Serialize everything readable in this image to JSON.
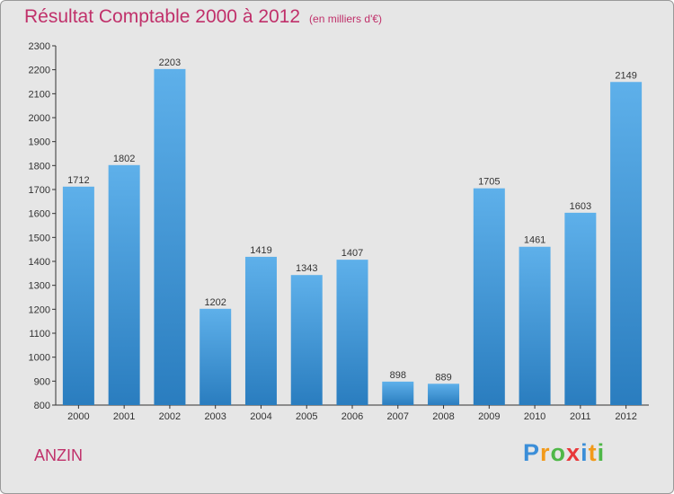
{
  "chart_data": {
    "type": "bar",
    "title": "Résultat Comptable 2000 à 2012",
    "unit": "(en milliers d'€)",
    "categories": [
      "2000",
      "2001",
      "2002",
      "2003",
      "2004",
      "2005",
      "2006",
      "2007",
      "2008",
      "2009",
      "2010",
      "2011",
      "2012"
    ],
    "values": [
      1712,
      1802,
      2203,
      1202,
      1419,
      1343,
      1407,
      898,
      889,
      1705,
      1461,
      1603,
      2149
    ],
    "ylim": [
      800,
      2300
    ],
    "yticks": [
      800,
      900,
      1000,
      1100,
      1200,
      1300,
      1400,
      1500,
      1600,
      1700,
      1800,
      1900,
      2000,
      2100,
      2200,
      2300
    ],
    "xlabel": "",
    "ylabel": "",
    "grid": false
  },
  "commune": "ANZIN",
  "logo": {
    "text": "Proxiti",
    "letters": [
      {
        "char": "P",
        "color": "#3b8ed8"
      },
      {
        "char": "r",
        "color": "#f29a1a"
      },
      {
        "char": "o",
        "color": "#4fb848"
      },
      {
        "char": "x",
        "color": "#e8383a"
      },
      {
        "char": "i",
        "color": "#3b8ed8"
      },
      {
        "char": "t",
        "color": "#f29a1a"
      },
      {
        "char": "i",
        "color": "#4fb848"
      }
    ]
  },
  "colors": {
    "accent": "#c0306a",
    "bar_top": "#5eb0ea",
    "bar_bottom": "#2a7dbf",
    "axis": "#333333",
    "background": "#e6e6e6"
  }
}
